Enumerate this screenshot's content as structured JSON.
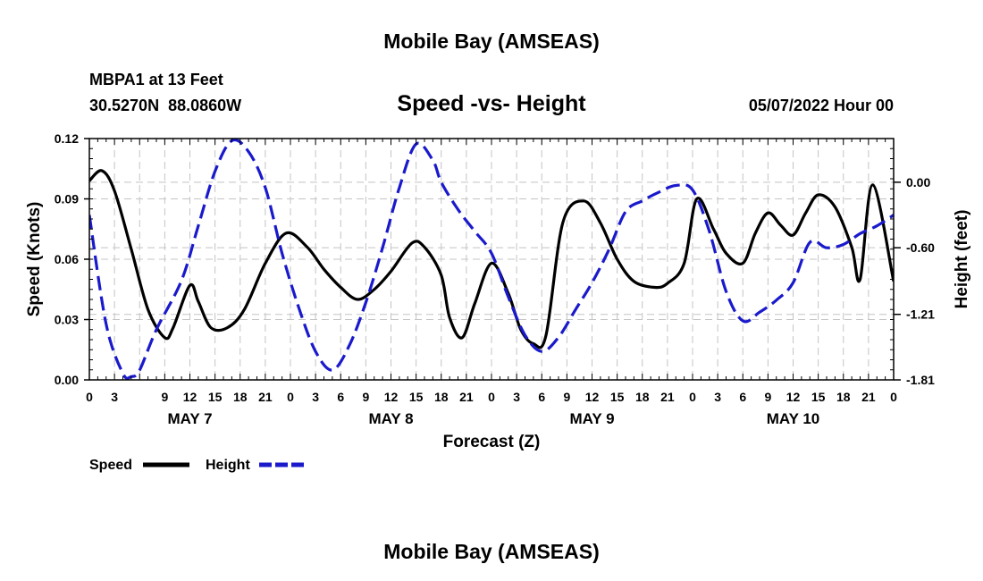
{
  "page": {
    "title": "Mobile Bay (AMSEAS)",
    "footer_title": "Mobile Bay (AMSEAS)"
  },
  "station": {
    "name_line": "MBPA1 at 13 Feet",
    "coords_line": "30.5270N  88.0860W"
  },
  "chart_data": {
    "type": "line",
    "title": "Speed -vs- Height",
    "date_label": "05/07/2022 Hour 00",
    "xlabel": "Forecast (Z)",
    "ylabel": "Speed (Knots)",
    "y2label": "Height (feet)",
    "x_unit": "hours from 05/07/2022 00Z",
    "xlim": [
      0,
      96
    ],
    "ylim": [
      0,
      0.12
    ],
    "y2lim": [
      -1.81,
      0.4
    ],
    "yticks": [
      "0.00",
      "0.03",
      "0.06",
      "0.09",
      "0.12"
    ],
    "y2ticks": [
      "0.00",
      "-0.60",
      "-1.21",
      "-1.81"
    ],
    "xtick_labels": [
      "0",
      "3",
      "9",
      "12",
      "15",
      "18",
      "21",
      "0",
      "3",
      "6",
      "9",
      "12",
      "15",
      "18",
      "21",
      "0",
      "3",
      "6",
      "9",
      "12",
      "15",
      "18",
      "21",
      "0",
      "3",
      "6",
      "9",
      "12",
      "15",
      "18",
      "21",
      "0"
    ],
    "day_labels": [
      "MAY 7",
      "MAY 8",
      "MAY 9",
      "MAY 10"
    ],
    "grid": true,
    "legend_position": "bottom-left",
    "series": [
      {
        "name": "Speed",
        "axis": "left",
        "color": "#000000",
        "style": "solid",
        "x": [
          0,
          1.5,
          3,
          5,
          7,
          9,
          10,
          12,
          13,
          14.5,
          16.5,
          18.5,
          21,
          23.5,
          26,
          28,
          30,
          32,
          34,
          36,
          38.5,
          40,
          42,
          43,
          44.5,
          46,
          48,
          50,
          51.5,
          53,
          54.5,
          56.5,
          59,
          61,
          63,
          65,
          67.5,
          69,
          71,
          72.5,
          74.5,
          76,
          78,
          79.5,
          81,
          82.5,
          84,
          85.5,
          87,
          89,
          91,
          92,
          93.5,
          96
        ],
        "values": [
          0.099,
          0.104,
          0.094,
          0.065,
          0.035,
          0.021,
          0.026,
          0.047,
          0.039,
          0.026,
          0.026,
          0.035,
          0.058,
          0.073,
          0.066,
          0.055,
          0.046,
          0.04,
          0.045,
          0.054,
          0.068,
          0.066,
          0.052,
          0.031,
          0.021,
          0.038,
          0.058,
          0.043,
          0.025,
          0.018,
          0.022,
          0.078,
          0.089,
          0.078,
          0.06,
          0.049,
          0.046,
          0.048,
          0.058,
          0.09,
          0.075,
          0.063,
          0.058,
          0.073,
          0.083,
          0.077,
          0.072,
          0.083,
          0.092,
          0.086,
          0.066,
          0.05,
          0.097,
          0.049
        ]
      },
      {
        "name": "Height",
        "axis": "right",
        "color": "#1a1acc",
        "style": "dashed",
        "x": [
          0,
          2,
          4,
          5,
          6,
          8,
          11,
          13,
          15,
          17,
          19,
          21,
          23,
          25,
          27,
          29,
          31,
          33,
          35,
          37,
          39,
          41,
          42,
          44,
          46,
          48,
          50,
          52,
          54,
          56,
          58,
          60,
          62,
          64,
          66,
          68,
          70,
          72,
          74,
          76,
          78,
          80,
          82,
          84,
          86,
          88,
          90,
          92,
          94,
          96
        ],
        "values": [
          -0.3,
          -1.3,
          -1.75,
          -1.78,
          -1.72,
          -1.35,
          -0.9,
          -0.4,
          0.1,
          0.38,
          0.28,
          -0.05,
          -0.65,
          -1.15,
          -1.55,
          -1.72,
          -1.5,
          -1.1,
          -0.6,
          -0.05,
          0.35,
          0.2,
          0.0,
          -0.25,
          -0.45,
          -0.65,
          -1.05,
          -1.4,
          -1.55,
          -1.42,
          -1.17,
          -0.92,
          -0.62,
          -0.27,
          -0.17,
          -0.09,
          -0.03,
          -0.07,
          -0.45,
          -1.0,
          -1.27,
          -1.19,
          -1.08,
          -0.92,
          -0.55,
          -0.6,
          -0.57,
          -0.47,
          -0.4,
          -0.3
        ]
      }
    ]
  }
}
